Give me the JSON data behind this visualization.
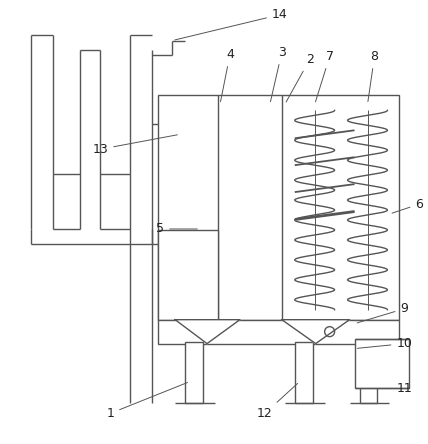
{
  "figure_size": [
    4.28,
    4.44
  ],
  "dpi": 100,
  "background_color": "#ffffff",
  "line_color": "#555555",
  "line_width": 1.0,
  "label_color": "#222222",
  "label_fontsize": 9
}
